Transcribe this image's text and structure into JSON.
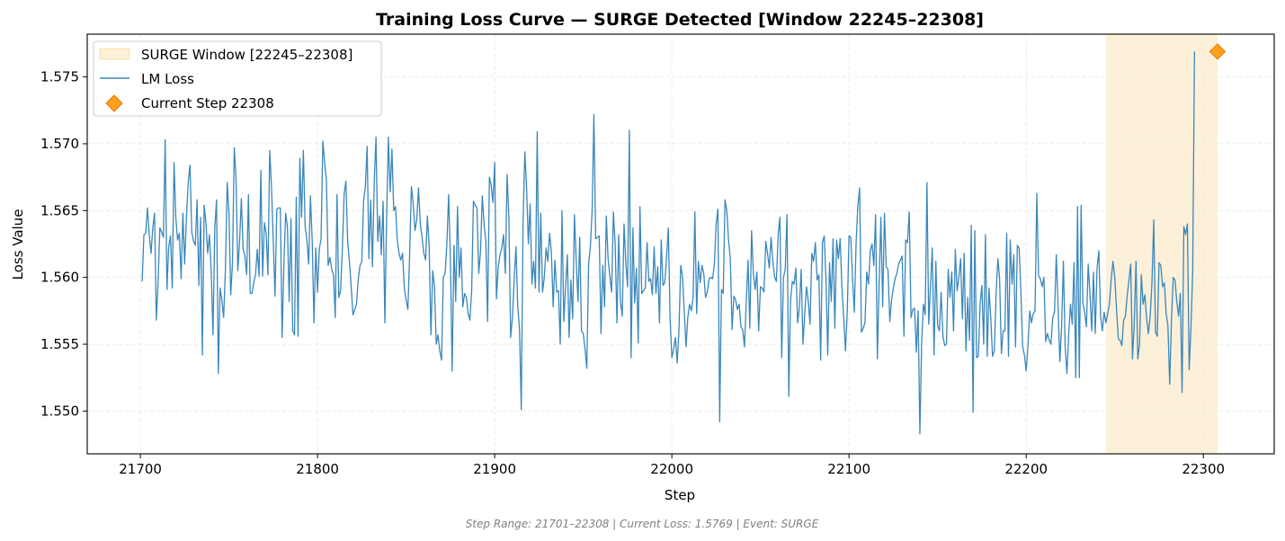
{
  "chart_data": {
    "type": "line",
    "title": "Training Loss Curve — SURGE Detected [Window 22245–22308]",
    "xlabel": "Step",
    "ylabel": "Loss Value",
    "xlim": [
      21670,
      22340
    ],
    "ylim": [
      1.5468,
      1.5782
    ],
    "x_ticks": [
      21700,
      21800,
      21900,
      22000,
      22100,
      22200,
      22300
    ],
    "y_ticks": [
      1.55,
      1.555,
      1.56,
      1.565,
      1.57,
      1.575
    ],
    "grid": true,
    "legend_position": "upper-left",
    "surge_window": {
      "label": "SURGE Window [22245–22308]",
      "start": 22245,
      "end": 22308,
      "color": "#fdf0d9"
    },
    "series": [
      {
        "name": "LM Loss",
        "color": "#3a87bb",
        "x_start": 21701,
        "x_step": 1,
        "values": [
          1.5597,
          1.5632,
          1.5633,
          1.5652,
          1.5632,
          1.5618,
          1.5637,
          1.5648,
          1.5568,
          1.5597,
          1.5637,
          1.5634,
          1.563,
          1.5703,
          1.5591,
          1.5623,
          1.5631,
          1.5592,
          1.5686,
          1.5645,
          1.5628,
          1.5633,
          1.5599,
          1.5648,
          1.561,
          1.5645,
          1.5671,
          1.5684,
          1.5634,
          1.5627,
          1.5624,
          1.5658,
          1.5594,
          1.5645,
          1.5542,
          1.5654,
          1.5641,
          1.5618,
          1.5632,
          1.5604,
          1.5557,
          1.5637,
          1.5658,
          1.5528,
          1.5592,
          1.5583,
          1.557,
          1.5606,
          1.5671,
          1.5648,
          1.5587,
          1.5611,
          1.5697,
          1.5674,
          1.5605,
          1.5627,
          1.5659,
          1.5621,
          1.5616,
          1.5602,
          1.5662,
          1.5588,
          1.5588,
          1.5596,
          1.5602,
          1.5621,
          1.5601,
          1.568,
          1.5601,
          1.5641,
          1.5633,
          1.5602,
          1.5695,
          1.5668,
          1.5628,
          1.5586,
          1.5651,
          1.5652,
          1.5652,
          1.5555,
          1.5609,
          1.5648,
          1.5638,
          1.5582,
          1.5644,
          1.556,
          1.5557,
          1.566,
          1.5556,
          1.5689,
          1.5645,
          1.5695,
          1.5638,
          1.5628,
          1.561,
          1.5661,
          1.5627,
          1.5566,
          1.5622,
          1.5589,
          1.5621,
          1.5629,
          1.5702,
          1.5686,
          1.5673,
          1.5609,
          1.5615,
          1.5606,
          1.5602,
          1.557,
          1.5662,
          1.5585,
          1.559,
          1.5621,
          1.5662,
          1.5672,
          1.5627,
          1.5612,
          1.5593,
          1.5572,
          1.5576,
          1.558,
          1.5599,
          1.5609,
          1.5612,
          1.5657,
          1.5668,
          1.5698,
          1.5614,
          1.5658,
          1.5608,
          1.5671,
          1.5705,
          1.5627,
          1.5646,
          1.5617,
          1.5657,
          1.5566,
          1.5645,
          1.5705,
          1.5664,
          1.5696,
          1.565,
          1.5653,
          1.5628,
          1.5618,
          1.5613,
          1.5618,
          1.5592,
          1.5583,
          1.5576,
          1.5617,
          1.5668,
          1.5655,
          1.5635,
          1.5643,
          1.5667,
          1.564,
          1.563,
          1.5618,
          1.5613,
          1.5646,
          1.5624,
          1.5557,
          1.5605,
          1.5593,
          1.555,
          1.5557,
          1.5545,
          1.5538,
          1.56,
          1.5603,
          1.5625,
          1.5662,
          1.5614,
          1.553,
          1.5624,
          1.5582,
          1.5653,
          1.56,
          1.5622,
          1.5578,
          1.5588,
          1.5585,
          1.5573,
          1.5568,
          1.559,
          1.5657,
          1.5654,
          1.5652,
          1.5603,
          1.5619,
          1.5661,
          1.564,
          1.5627,
          1.5567,
          1.5675,
          1.5669,
          1.5656,
          1.5686,
          1.5584,
          1.5608,
          1.5617,
          1.5622,
          1.5632,
          1.5603,
          1.5677,
          1.5645,
          1.5555,
          1.557,
          1.5598,
          1.5623,
          1.5578,
          1.5562,
          1.5501,
          1.564,
          1.5694,
          1.5667,
          1.5625,
          1.5655,
          1.5595,
          1.5612,
          1.5592,
          1.5709,
          1.5589,
          1.5648,
          1.5589,
          1.56,
          1.5622,
          1.5612,
          1.5633,
          1.5619,
          1.5578,
          1.5613,
          1.5589,
          1.559,
          1.555,
          1.565,
          1.5567,
          1.5592,
          1.5617,
          1.5555,
          1.5598,
          1.5569,
          1.5647,
          1.5613,
          1.5582,
          1.563,
          1.556,
          1.5558,
          1.5546,
          1.5532,
          1.561,
          1.5623,
          1.565,
          1.5722,
          1.5629,
          1.563,
          1.5631,
          1.5558,
          1.5609,
          1.5578,
          1.5646,
          1.5614,
          1.5601,
          1.5589,
          1.5649,
          1.5625,
          1.5566,
          1.5632,
          1.5582,
          1.5571,
          1.564,
          1.5611,
          1.5593,
          1.571,
          1.554,
          1.5637,
          1.5581,
          1.5607,
          1.5551,
          1.5653,
          1.5588,
          1.559,
          1.5592,
          1.5626,
          1.5597,
          1.5599,
          1.5587,
          1.5623,
          1.5588,
          1.5608,
          1.5566,
          1.5628,
          1.5594,
          1.5596,
          1.5615,
          1.5637,
          1.5569,
          1.554,
          1.5546,
          1.5555,
          1.5536,
          1.556,
          1.5609,
          1.5601,
          1.5575,
          1.5548,
          1.557,
          1.558,
          1.5575,
          1.5585,
          1.5649,
          1.5573,
          1.5612,
          1.5596,
          1.5609,
          1.5603,
          1.5585,
          1.5589,
          1.5599,
          1.56,
          1.5599,
          1.561,
          1.564,
          1.5651,
          1.5492,
          1.5591,
          1.5588,
          1.5658,
          1.565,
          1.5628,
          1.5614,
          1.5561,
          1.5586,
          1.5583,
          1.5576,
          1.558,
          1.5563,
          1.5561,
          1.5548,
          1.5582,
          1.5613,
          1.5562,
          1.5635,
          1.5603,
          1.5591,
          1.5604,
          1.556,
          1.5593,
          1.5592,
          1.5589,
          1.5627,
          1.5618,
          1.5607,
          1.563,
          1.5612,
          1.56,
          1.5597,
          1.5632,
          1.5645,
          1.554,
          1.56,
          1.5606,
          1.5647,
          1.5511,
          1.5583,
          1.5597,
          1.5595,
          1.5607,
          1.5566,
          1.5578,
          1.5606,
          1.555,
          1.5573,
          1.5593,
          1.5582,
          1.5565,
          1.5618,
          1.5612,
          1.5626,
          1.5598,
          1.5602,
          1.5538,
          1.5626,
          1.5631,
          1.5598,
          1.5542,
          1.5611,
          1.5582,
          1.5629,
          1.5562,
          1.5628,
          1.5614,
          1.5629,
          1.5592,
          1.557,
          1.5545,
          1.5574,
          1.5631,
          1.563,
          1.5599,
          1.5574,
          1.5626,
          1.5654,
          1.5667,
          1.5559,
          1.5562,
          1.5566,
          1.5604,
          1.5595,
          1.562,
          1.5625,
          1.5609,
          1.5647,
          1.5539,
          1.5596,
          1.5645,
          1.5578,
          1.5648,
          1.5608,
          1.5606,
          1.5567,
          1.5583,
          1.5592,
          1.5599,
          1.5603,
          1.561,
          1.5613,
          1.5616,
          1.5556,
          1.5628,
          1.5626,
          1.5649,
          1.557,
          1.5576,
          1.5577,
          1.5544,
          1.5575,
          1.5483,
          1.5551,
          1.558,
          1.5572,
          1.5671,
          1.5565,
          1.5594,
          1.5622,
          1.5542,
          1.5612,
          1.5564,
          1.556,
          1.5589,
          1.5556,
          1.5549,
          1.555,
          1.5606,
          1.5585,
          1.5604,
          1.556,
          1.5621,
          1.559,
          1.56,
          1.5614,
          1.5569,
          1.5618,
          1.5545,
          1.5585,
          1.5553,
          1.5639,
          1.5499,
          1.5635,
          1.554,
          1.5541,
          1.558,
          1.5594,
          1.555,
          1.5632,
          1.5541,
          1.5592,
          1.557,
          1.5541,
          1.5545,
          1.5587,
          1.5614,
          1.5599,
          1.5543,
          1.556,
          1.556,
          1.5633,
          1.5541,
          1.5628,
          1.5595,
          1.5617,
          1.5548,
          1.5624,
          1.5622,
          1.559,
          1.5548,
          1.5542,
          1.553,
          1.5549,
          1.5575,
          1.5566,
          1.5573,
          1.5575,
          1.5663,
          1.5601,
          1.5599,
          1.5593,
          1.56,
          1.5552,
          1.5558,
          1.5553,
          1.555,
          1.557,
          1.5574,
          1.5617,
          1.5578,
          1.5537,
          1.5563,
          1.5612,
          1.5548,
          1.5528,
          1.5557,
          1.558,
          1.5565,
          1.5611,
          1.5525,
          1.5653,
          1.5525,
          1.5654,
          1.5581,
          1.5574,
          1.5563,
          1.561,
          1.5588,
          1.556,
          1.5604,
          1.5558,
          1.5607,
          1.562,
          1.5571,
          1.556,
          1.5574,
          1.5566,
          1.5573,
          1.558,
          1.5599,
          1.5612,
          1.56,
          1.5576,
          1.5554,
          1.5553,
          1.5549,
          1.5568,
          1.5571,
          1.5586,
          1.5598,
          1.561,
          1.5539,
          1.5566,
          1.5612,
          1.5539,
          1.555,
          1.5602,
          1.558,
          1.5587,
          1.5569,
          1.5558,
          1.5571,
          1.5596,
          1.5643,
          1.5559,
          1.5556,
          1.5611,
          1.5609,
          1.5593,
          1.5596,
          1.5573,
          1.5564,
          1.552,
          1.5568,
          1.56,
          1.5598,
          1.5582,
          1.5571,
          1.5588,
          1.5514,
          1.5638,
          1.5632,
          1.564,
          1.5531,
          1.5562,
          1.5604,
          1.5769
        ]
      }
    ],
    "current_point": {
      "label": "Current Step 22308",
      "x": 22308,
      "y": 1.5769,
      "color": "#ffa01c",
      "edge_color": "#e07b00"
    }
  },
  "footer": "Step Range: 21701–22308 | Current Loss: 1.5769 | Event: SURGE"
}
